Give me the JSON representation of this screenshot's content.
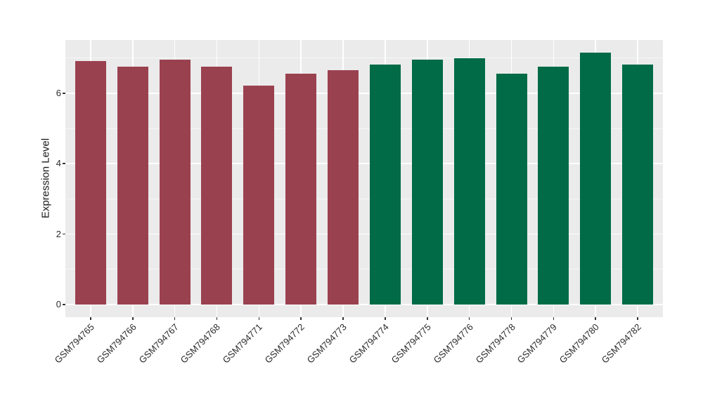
{
  "chart_data": {
    "type": "bar",
    "title": "",
    "xlabel": "",
    "ylabel": "Expression Level",
    "categories": [
      "GSM794765",
      "GSM794766",
      "GSM794767",
      "GSM794768",
      "GSM794771",
      "GSM794772",
      "GSM794773",
      "GSM794774",
      "GSM794775",
      "GSM794776",
      "GSM794778",
      "GSM794779",
      "GSM794780",
      "GSM794782"
    ],
    "values": [
      6.91,
      6.76,
      6.96,
      6.76,
      6.22,
      6.56,
      6.66,
      6.82,
      6.96,
      7.0,
      6.55,
      6.75,
      7.16,
      6.82
    ],
    "groups": [
      "group1",
      "group1",
      "group1",
      "group1",
      "group1",
      "group1",
      "group1",
      "group2",
      "group2",
      "group2",
      "group2",
      "group2",
      "group2",
      "group2"
    ],
    "group_colors": {
      "group1": "#9A4150",
      "group2": "#006B46"
    },
    "yticks": [
      0,
      2,
      4,
      6
    ],
    "ylim": [
      0,
      7.5
    ],
    "grid": true,
    "legend_position": "none",
    "x_label_angle": 45
  },
  "style": {
    "figure_bg": "#FFFFFF",
    "panel_bg": "#EBEBEB",
    "grid_color": "#FFFFFF",
    "tick_mark_color": "#333333",
    "axis_text_color": "#2B2B2B",
    "axis_title_color": "#1A1A1A"
  }
}
